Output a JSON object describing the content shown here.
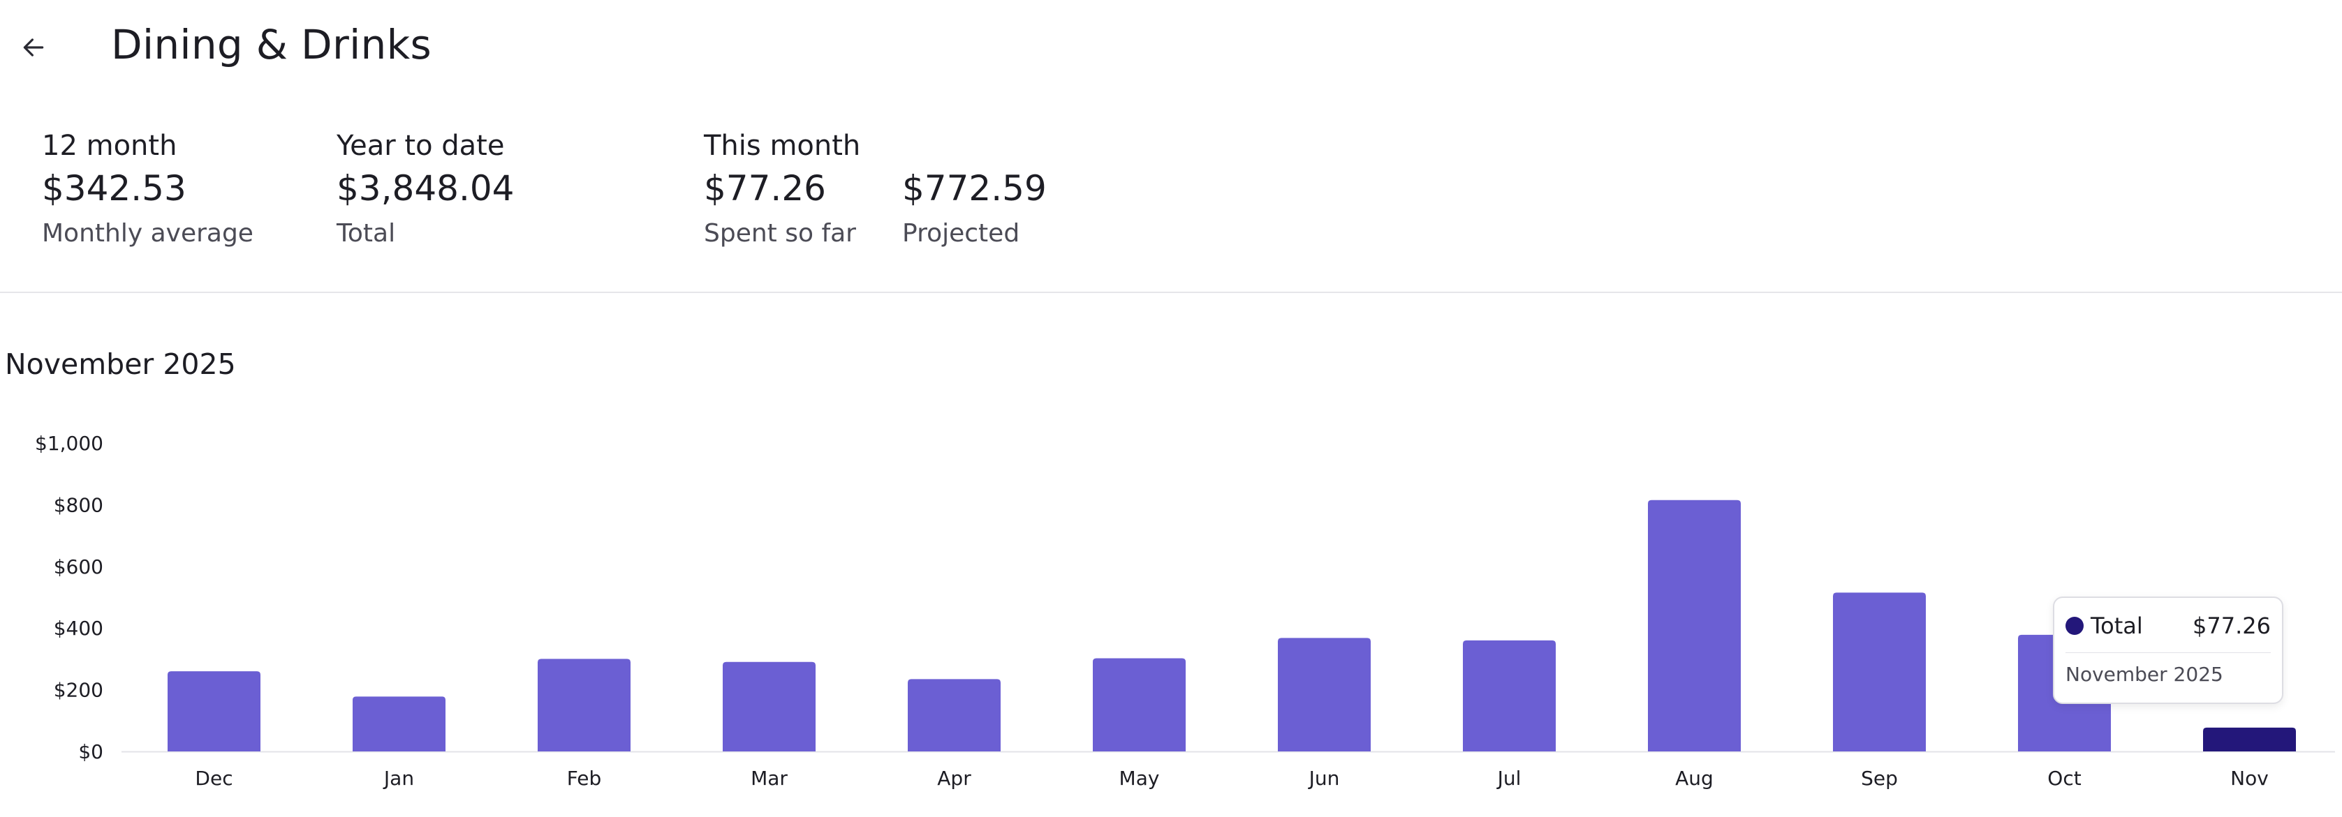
{
  "header": {
    "back_icon": "arrow-left-icon",
    "title": "Dining & Drinks"
  },
  "stats": {
    "twelve_month": {
      "label": "12 month",
      "value": "$342.53",
      "sub": "Monthly average"
    },
    "ytd": {
      "label": "Year to date",
      "value": "$3,848.04",
      "sub": "Total"
    },
    "this_month": {
      "label": "This month",
      "spent_value": "$77.26",
      "spent_sub": "Spent so far",
      "projected_value": "$772.59",
      "projected_sub": "Projected"
    }
  },
  "chart_title": "November 2025",
  "chart_data": {
    "type": "bar",
    "categories": [
      "Dec",
      "Jan",
      "Feb",
      "Mar",
      "Apr",
      "May",
      "Jun",
      "Jul",
      "Aug",
      "Sep",
      "Oct",
      "Nov"
    ],
    "series": [
      {
        "name": "Total",
        "values": [
          260,
          178,
          300,
          290.23,
          234.36,
          302,
          368,
          360,
          815,
          515,
          378,
          77.26
        ]
      }
    ],
    "highlight_index": 11,
    "ylim": [
      0,
      1000
    ],
    "yticks": [
      0,
      200,
      400,
      600,
      800,
      1000
    ],
    "ytick_labels": [
      "$0",
      "$200",
      "$400",
      "$600",
      "$800",
      "$1,000"
    ],
    "colors": {
      "bar": "#6b5fd3",
      "highlight": "#23177a"
    },
    "grid": false
  },
  "tooltip": {
    "label": "Total",
    "value": "$77.26",
    "period": "November 2025",
    "dot_color": "#23177a"
  }
}
